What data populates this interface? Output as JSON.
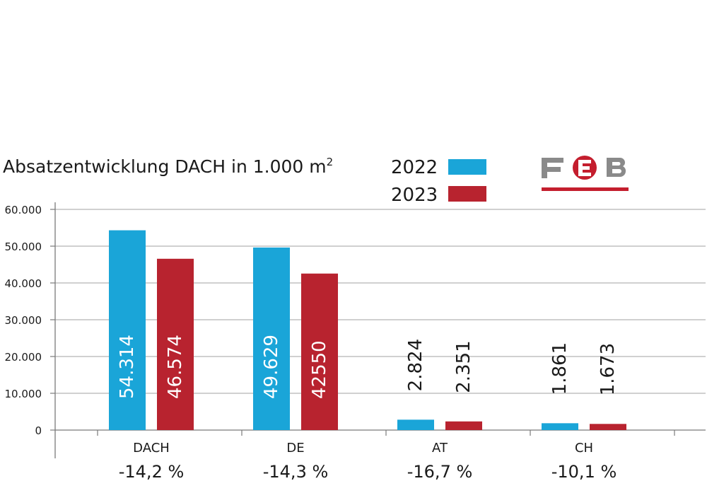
{
  "colors": {
    "y2022": "#1aa5d8",
    "y2023": "#b8232f",
    "grid": "#b5b5b5",
    "axis": "#7a7a7a",
    "logo_gray": "#8a8a8a",
    "logo_red": "#c41e2e"
  },
  "logo": {
    "text": "FEB"
  },
  "chart_data": {
    "type": "bar",
    "title": "Absatzentwicklung DACH in 1.000 m²",
    "title_main": "Absatzentwicklung DACH in 1.000 m",
    "title_sup": "2",
    "categories": [
      "DACH",
      "DE",
      "AT",
      "CH"
    ],
    "series": [
      {
        "name": "2022",
        "values": [
          54314,
          49629,
          2824,
          1861
        ],
        "labels": [
          "54.314",
          "49.629",
          "2.824",
          "1.861"
        ]
      },
      {
        "name": "2023",
        "values": [
          46574,
          42550,
          2351,
          1673
        ],
        "labels": [
          "46.574",
          "42550",
          "2.351",
          "1.673"
        ]
      }
    ],
    "changes": [
      "-14,2 %",
      "-14,3 %",
      "-16,7 %",
      "-10,1 %"
    ],
    "ylim": [
      0,
      60000
    ],
    "yticks": [
      0,
      10000,
      20000,
      30000,
      40000,
      50000,
      60000
    ],
    "ytick_labels": [
      "0",
      "10.000",
      "20.000",
      "30.000",
      "40.000",
      "50.000",
      "60.000"
    ],
    "grid": true,
    "legend_position": "top-center"
  }
}
